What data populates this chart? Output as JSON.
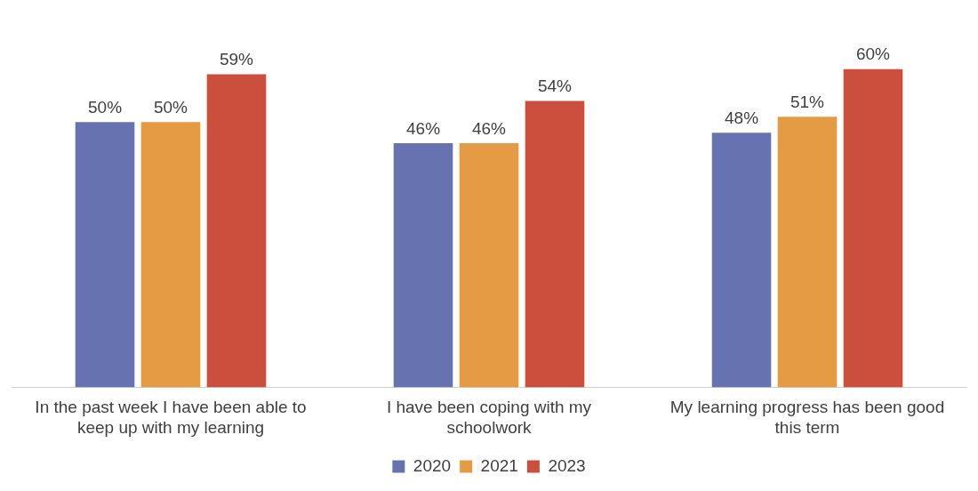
{
  "chart_data": {
    "type": "bar",
    "categories": [
      "In the past week I have been able to keep up with my learning",
      "I have been coping with my schoolwork",
      "My learning progress has been good this term"
    ],
    "series": [
      {
        "name": "2020",
        "color": "#6673b0",
        "values": [
          50,
          46,
          48
        ],
        "value_labels": [
          "50%",
          "46%",
          "48%"
        ]
      },
      {
        "name": "2021",
        "color": "#e49b43",
        "values": [
          50,
          46,
          51
        ],
        "value_labels": [
          "50%",
          "46%",
          "51%"
        ]
      },
      {
        "name": "2023",
        "color": "#cc4e3c",
        "values": [
          59,
          54,
          60
        ],
        "value_labels": [
          "59%",
          "54%",
          "60%"
        ]
      }
    ],
    "legend": "bottom"
  }
}
